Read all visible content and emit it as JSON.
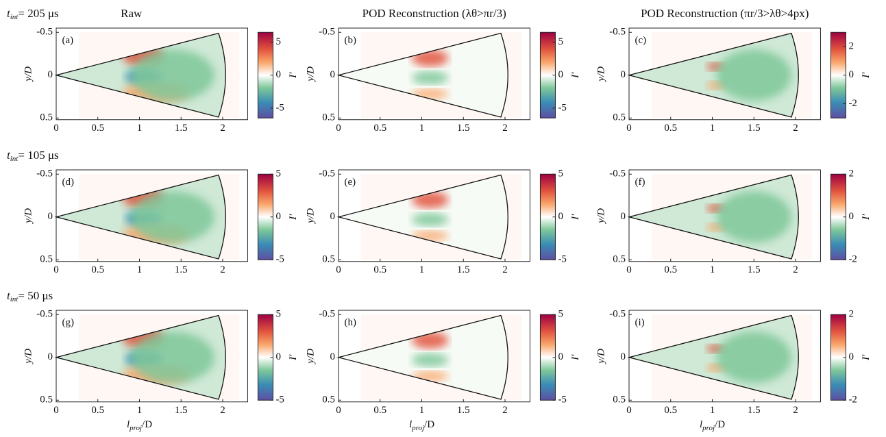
{
  "figure": {
    "columns": [
      "Raw",
      "POD Reconstruction (λθ>πr/3)",
      "POD Reconstruction (πr/3>λθ>4px)"
    ],
    "rows": [
      {
        "symbol": "t",
        "subscript": "int",
        "rest": "= 205 μs",
        "panels": [
          {
            "letter": "(a)",
            "clim": [
              -6.5,
              6.5
            ],
            "cticks": [
              -5,
              0,
              5
            ]
          },
          {
            "letter": "(b)",
            "clim": [
              -6.5,
              6.5
            ],
            "cticks": [
              -5,
              0,
              5
            ]
          },
          {
            "letter": "(c)",
            "clim": [
              -3,
              3
            ],
            "cticks": [
              -2,
              0,
              2
            ]
          }
        ]
      },
      {
        "symbol": "t",
        "subscript": "int",
        "rest": "= 105 μs",
        "panels": [
          {
            "letter": "(d)",
            "clim": [
              -5,
              5
            ],
            "cticks": [
              -5,
              0,
              5
            ]
          },
          {
            "letter": "(e)",
            "clim": [
              -5,
              5
            ],
            "cticks": [
              -5,
              0,
              5
            ]
          },
          {
            "letter": "(f)",
            "clim": [
              -2,
              2
            ],
            "cticks": [
              -2,
              0,
              2
            ]
          }
        ]
      },
      {
        "symbol": "t",
        "subscript": "int",
        "rest": "= 50 μs",
        "panels": [
          {
            "letter": "(g)",
            "clim": [
              -5,
              5
            ],
            "cticks": [
              -5,
              0,
              5
            ]
          },
          {
            "letter": "(h)",
            "clim": [
              -5,
              5
            ],
            "cticks": [
              -5,
              0,
              5
            ]
          },
          {
            "letter": "(i)",
            "clim": [
              -2,
              2
            ],
            "cticks": [
              -2,
              0,
              2
            ]
          }
        ]
      }
    ],
    "xlabel": {
      "symbol": "l",
      "subscript": "proj",
      "rest": "/D"
    },
    "ylabel": "y/D",
    "clabel": "I′",
    "xlim": [
      0,
      2.3
    ],
    "xticks": [
      0,
      0.5,
      1,
      1.5,
      2
    ],
    "ylim": [
      -0.55,
      0.52
    ],
    "yticks": [
      -0.5,
      0,
      0.5
    ]
  }
}
